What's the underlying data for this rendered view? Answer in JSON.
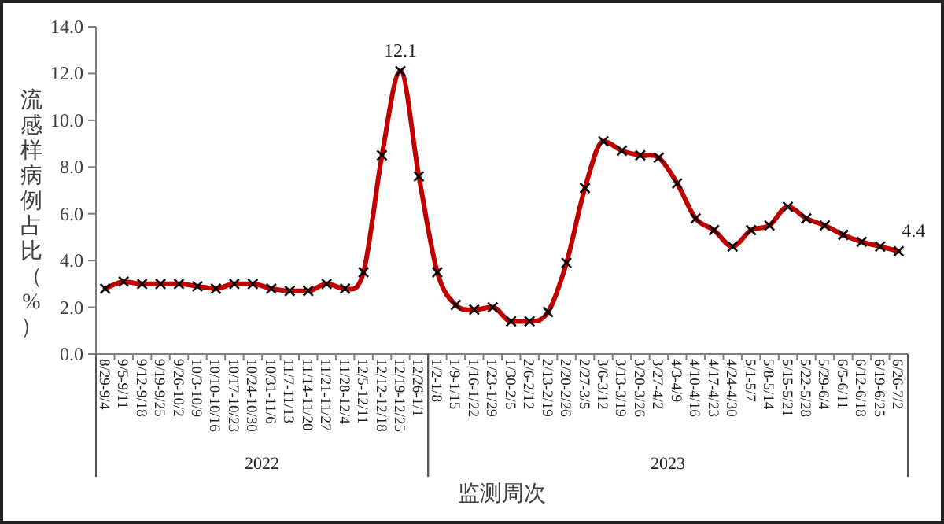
{
  "chart_data": {
    "type": "line",
    "xlabel": "监测周次",
    "ylabel": "流感样病例占比（%）",
    "categories": [
      "8/29-9/4",
      "9/5-9/11",
      "9/12-9/18",
      "9/19-9/25",
      "9/26-10/2",
      "10/3-10/9",
      "10/10-10/16",
      "10/17-10/23",
      "10/24-10/30",
      "10/31-11/6",
      "11/7-11/13",
      "11/14-11/20",
      "11/21-11/27",
      "11/28-12/4",
      "12/5-12/11",
      "12/12-12/18",
      "12/19-12/25",
      "12/26-1/1",
      "1/2-1/8",
      "1/9-1/15",
      "1/16-1/22",
      "1/23-1/29",
      "1/30-2/5",
      "2/6-2/12",
      "2/13-2/19",
      "2/20-2/26",
      "2/27-3/5",
      "3/6-3/12",
      "3/13-3/19",
      "3/20-3/26",
      "3/27-4/2",
      "4/3-4/9",
      "4/10-4/16",
      "4/17-4/23",
      "4/24-4/30",
      "5/1-5/7",
      "5/8-5/14",
      "5/15-5/21",
      "5/22-5/28",
      "5/29-6/4",
      "6/5-6/11",
      "6/12-6/18",
      "6/19-6/25",
      "6/26-7/2"
    ],
    "series": [
      {
        "color": "#c00000",
        "values": [
          2.8,
          3.1,
          3.0,
          3.0,
          3.0,
          2.9,
          2.8,
          3.0,
          3.0,
          2.8,
          2.7,
          2.7,
          3.0,
          2.8,
          3.5,
          8.5,
          12.1,
          7.6,
          3.5,
          2.1,
          1.9,
          2.0,
          1.4,
          1.4,
          1.8,
          3.9,
          7.1,
          9.1,
          8.7,
          8.5,
          8.4,
          7.3,
          5.8,
          5.3,
          4.6,
          5.3,
          5.5,
          6.3,
          5.8,
          5.5,
          5.1,
          4.8,
          4.6,
          4.4
        ],
        "value_labels": [
          null,
          null,
          null,
          null,
          null,
          null,
          null,
          null,
          null,
          null,
          null,
          null,
          null,
          null,
          null,
          null,
          "12.1",
          null,
          null,
          null,
          null,
          null,
          null,
          null,
          null,
          null,
          null,
          null,
          null,
          null,
          null,
          null,
          null,
          null,
          null,
          null,
          null,
          null,
          null,
          null,
          null,
          null,
          null,
          "4.4"
        ]
      }
    ],
    "annotations": [
      "2022",
      "2023"
    ],
    "ylim": [
      0,
      14
    ],
    "yticks": [
      {
        "value": 0,
        "label": "0.0"
      },
      {
        "value": 2,
        "label": "2.0"
      },
      {
        "value": 4,
        "label": "4.0"
      },
      {
        "value": 6,
        "label": "6.0"
      },
      {
        "value": 8,
        "label": "8.0"
      },
      {
        "value": 10,
        "label": "10.0"
      },
      {
        "value": 12,
        "label": "12.0"
      },
      {
        "value": 14,
        "label": "14.0"
      }
    ],
    "marker": "cross",
    "line_style": "solid"
  }
}
